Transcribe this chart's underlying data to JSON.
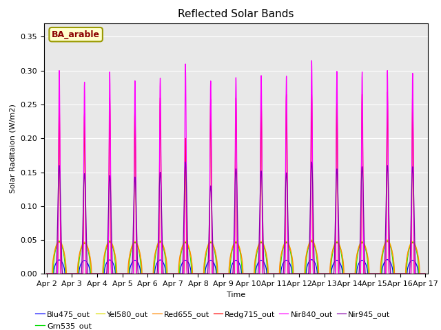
{
  "title": "Reflected Solar Bands",
  "xlabel": "Time",
  "ylabel": "Solar Raditaion (W/m2)",
  "annotation": "BA_arable",
  "ylim": [
    0,
    0.37
  ],
  "yticks": [
    0.0,
    0.05,
    0.1,
    0.15,
    0.2,
    0.25,
    0.3,
    0.35
  ],
  "series_order": [
    "Blu475_out",
    "Grn535_out",
    "Yel580_out",
    "Red655_out",
    "Redg715_out",
    "Nir840_out",
    "Nir945_out"
  ],
  "series": {
    "Blu475_out": {
      "color": "#0000ff"
    },
    "Grn535_out": {
      "color": "#00dd00"
    },
    "Yel580_out": {
      "color": "#dddd00"
    },
    "Red655_out": {
      "color": "#ff8800"
    },
    "Redg715_out": {
      "color": "#ff0000"
    },
    "Nir840_out": {
      "color": "#ff00ff"
    },
    "Nir945_out": {
      "color": "#8800aa"
    }
  },
  "start_day": 2,
  "end_day": 17,
  "n_days": 15,
  "background_color": "#e8e8e8",
  "figure_facecolor": "#ffffff",
  "title_fontsize": 11,
  "label_fontsize": 8,
  "tick_fontsize": 8,
  "legend_fontsize": 8,
  "nir840_peaks": [
    0.3,
    0.283,
    0.298,
    0.285,
    0.289,
    0.31,
    0.285,
    0.29,
    0.293,
    0.292,
    0.315,
    0.299,
    0.298,
    0.3,
    0.296
  ],
  "redg_peaks": [
    0.256,
    0.237,
    0.26,
    0.245,
    0.26,
    0.2,
    0.258,
    0.26,
    0.26,
    0.265,
    0.265,
    0.26,
    0.265,
    0.268,
    0.265
  ],
  "nir945_peaks": [
    0.16,
    0.148,
    0.145,
    0.143,
    0.15,
    0.165,
    0.13,
    0.155,
    0.152,
    0.149,
    0.165,
    0.155,
    0.158,
    0.16,
    0.158
  ],
  "broad_peaks": [
    0.049,
    0.047,
    0.049,
    0.048,
    0.049,
    0.048,
    0.048,
    0.048,
    0.048,
    0.048,
    0.05,
    0.048,
    0.048,
    0.05,
    0.048
  ]
}
